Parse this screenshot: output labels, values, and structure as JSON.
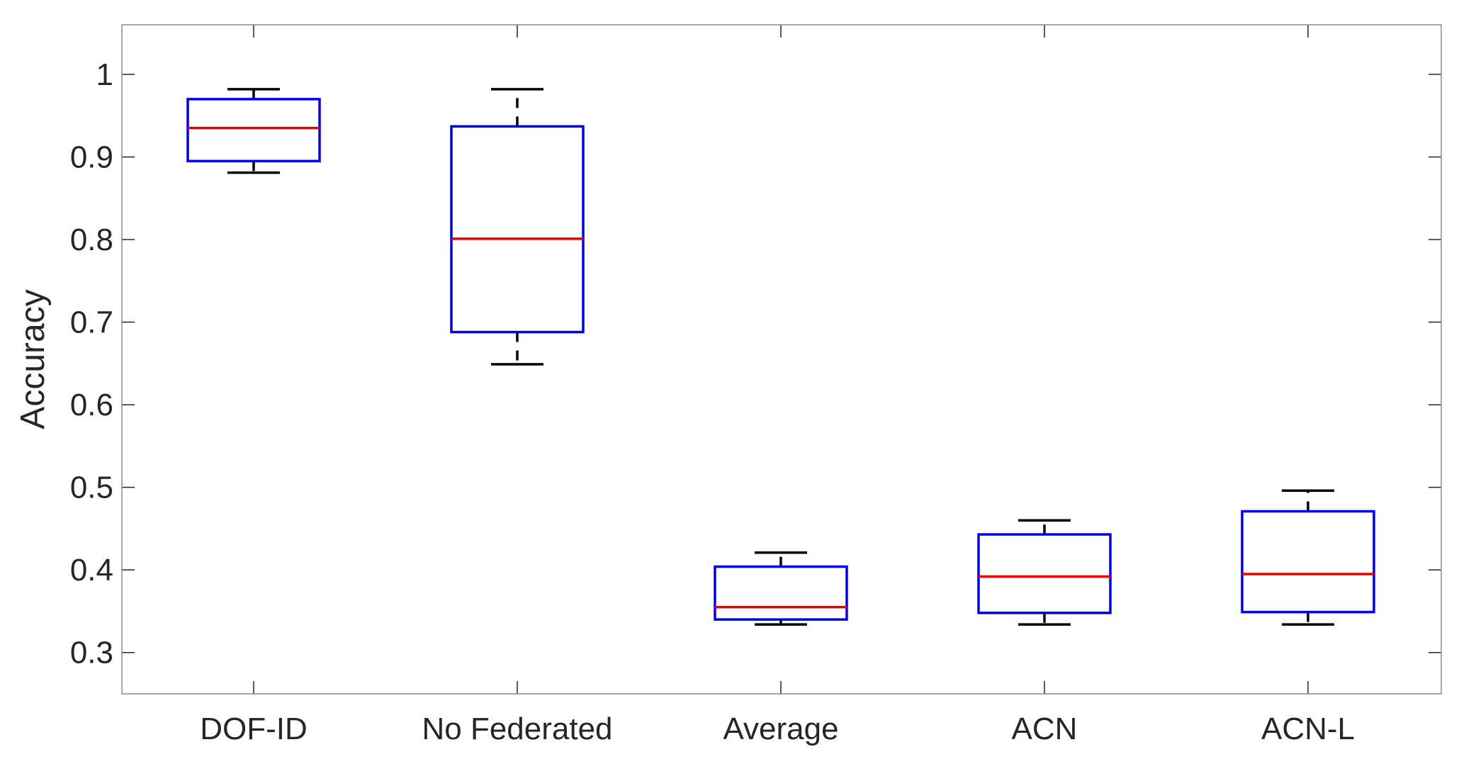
{
  "chart_data": {
    "type": "boxplot",
    "ylabel": "Accuracy",
    "xlabel": "",
    "ylim": [
      0.25,
      1.06
    ],
    "yticks": [
      0.3,
      0.4,
      0.5,
      0.6,
      0.7,
      0.8,
      0.9,
      1
    ],
    "ytick_labels": [
      "0.3",
      "0.4",
      "0.5",
      "0.6",
      "0.7",
      "0.8",
      "0.9",
      "1"
    ],
    "grid": false,
    "categories": [
      "DOF-ID",
      "No Federated",
      "Average",
      "ACN",
      "ACN-L"
    ],
    "boxes": [
      {
        "whisker_low": 0.881,
        "q1": 0.895,
        "median": 0.935,
        "q3": 0.97,
        "whisker_high": 0.982
      },
      {
        "whisker_low": 0.649,
        "q1": 0.688,
        "median": 0.801,
        "q3": 0.937,
        "whisker_high": 0.982
      },
      {
        "whisker_low": 0.334,
        "q1": 0.34,
        "median": 0.355,
        "q3": 0.404,
        "whisker_high": 0.421
      },
      {
        "whisker_low": 0.334,
        "q1": 0.348,
        "median": 0.392,
        "q3": 0.443,
        "whisker_high": 0.46
      },
      {
        "whisker_low": 0.334,
        "q1": 0.349,
        "median": 0.395,
        "q3": 0.471,
        "whisker_high": 0.496
      }
    ],
    "colors": {
      "box": "#0000e6",
      "median": "#e60000",
      "whisker": "#000000",
      "axes": "#262626",
      "frame": "#8c8c8c"
    }
  }
}
